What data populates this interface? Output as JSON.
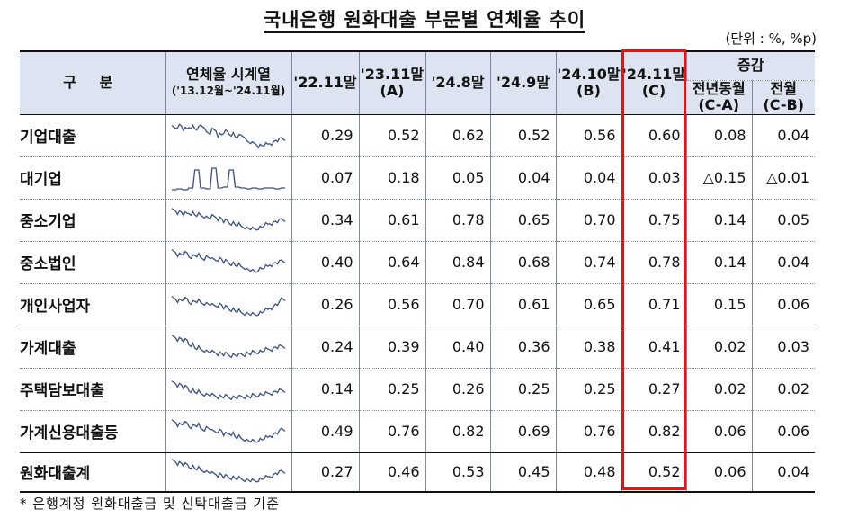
{
  "title": "국내은행 원화대출 부문별 연체율 추이",
  "unit": "(단위 : %, %p)",
  "header": {
    "category": "구  분",
    "sparkline": "연체율 시계열",
    "sparkline_sub": "('13.12월~'24.11월)",
    "cols": [
      {
        "line1": "'22.11말",
        "line2": ""
      },
      {
        "line1": "'23.11말",
        "line2": "(A)"
      },
      {
        "line1": "'24.8말",
        "line2": ""
      },
      {
        "line1": "'24.9말",
        "line2": ""
      },
      {
        "line1": "'24.10말",
        "line2": "(B)"
      },
      {
        "line1": "'24.11말",
        "line2": "(C)"
      }
    ],
    "change_group": "증감",
    "change_cols": [
      {
        "line1": "전년동월",
        "line2": "(C-A)"
      },
      {
        "line1": "전월",
        "line2": "(C-B)"
      }
    ]
  },
  "rows": [
    {
      "label": "기업대출",
      "values": [
        "0.29",
        "0.52",
        "0.62",
        "0.52",
        "0.56",
        "0.60",
        "0.08",
        "0.04"
      ]
    },
    {
      "label": "대기업",
      "values": [
        "0.07",
        "0.18",
        "0.05",
        "0.04",
        "0.04",
        "0.03",
        "△0.15",
        "△0.01"
      ]
    },
    {
      "label": "중소기업",
      "values": [
        "0.34",
        "0.61",
        "0.78",
        "0.65",
        "0.70",
        "0.75",
        "0.14",
        "0.05"
      ]
    },
    {
      "label": "중소법인",
      "values": [
        "0.40",
        "0.64",
        "0.84",
        "0.68",
        "0.74",
        "0.78",
        "0.14",
        "0.04"
      ]
    },
    {
      "label": "개인사업자",
      "values": [
        "0.26",
        "0.56",
        "0.70",
        "0.61",
        "0.65",
        "0.71",
        "0.15",
        "0.06"
      ]
    },
    {
      "label": "가계대출",
      "values": [
        "0.24",
        "0.39",
        "0.40",
        "0.36",
        "0.38",
        "0.41",
        "0.02",
        "0.03"
      ]
    },
    {
      "label": "주택담보대출",
      "values": [
        "0.14",
        "0.25",
        "0.26",
        "0.25",
        "0.25",
        "0.27",
        "0.02",
        "0.02"
      ]
    },
    {
      "label": "가계신용대출등",
      "values": [
        "0.49",
        "0.76",
        "0.82",
        "0.69",
        "0.76",
        "0.82",
        "0.06",
        "0.06"
      ]
    },
    {
      "label": "원화대출계",
      "values": [
        "0.27",
        "0.46",
        "0.53",
        "0.45",
        "0.48",
        "0.52",
        "0.06",
        "0.04"
      ]
    }
  ],
  "footnote": "* 은행계정 원화대출금 및 신탁대출금 기준",
  "colors": {
    "header_bg": "#dde3f1",
    "highlight": "#e01616",
    "sparkline": "#3b4f8a"
  }
}
